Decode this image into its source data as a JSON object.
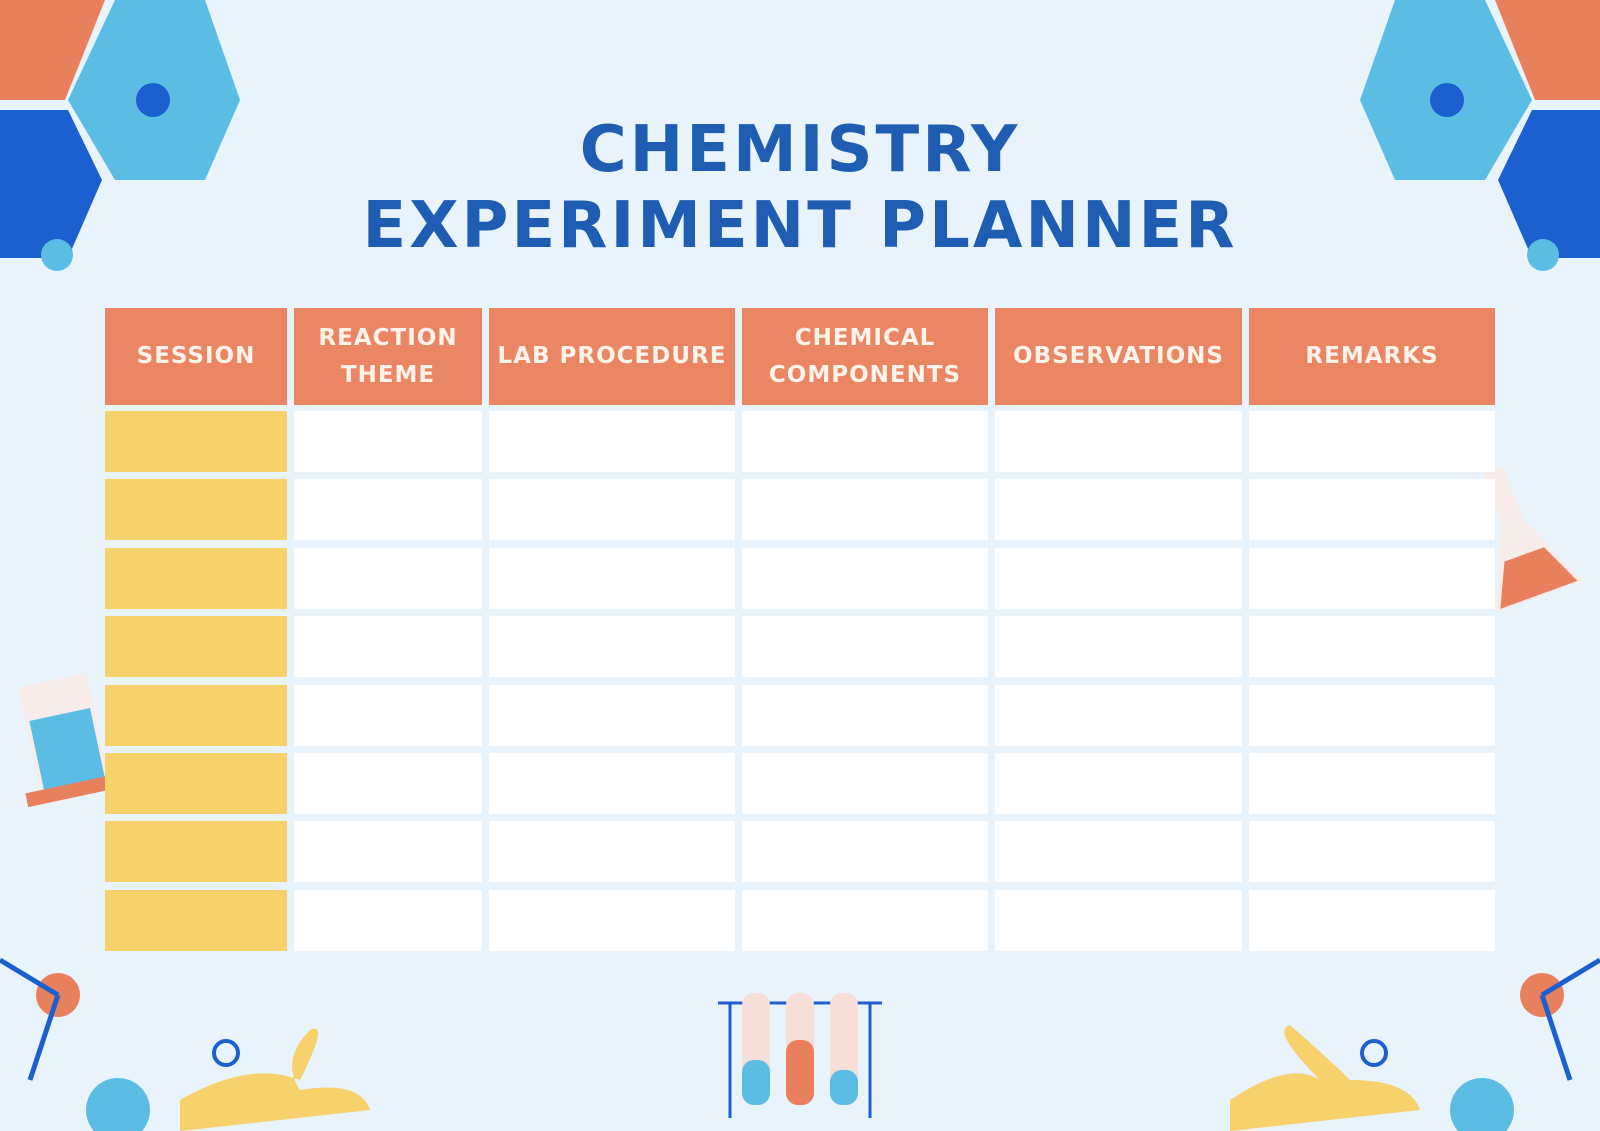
{
  "header": {
    "title": "CHEMISTRY EXPERIMENT PLANNER"
  },
  "table": {
    "columns": [
      "SESSION",
      "REACTION THEME",
      "LAB PROCEDURE",
      "CHEMICAL COMPONENTS",
      "OBSERVATIONS",
      "REMARKS"
    ]
  }
}
